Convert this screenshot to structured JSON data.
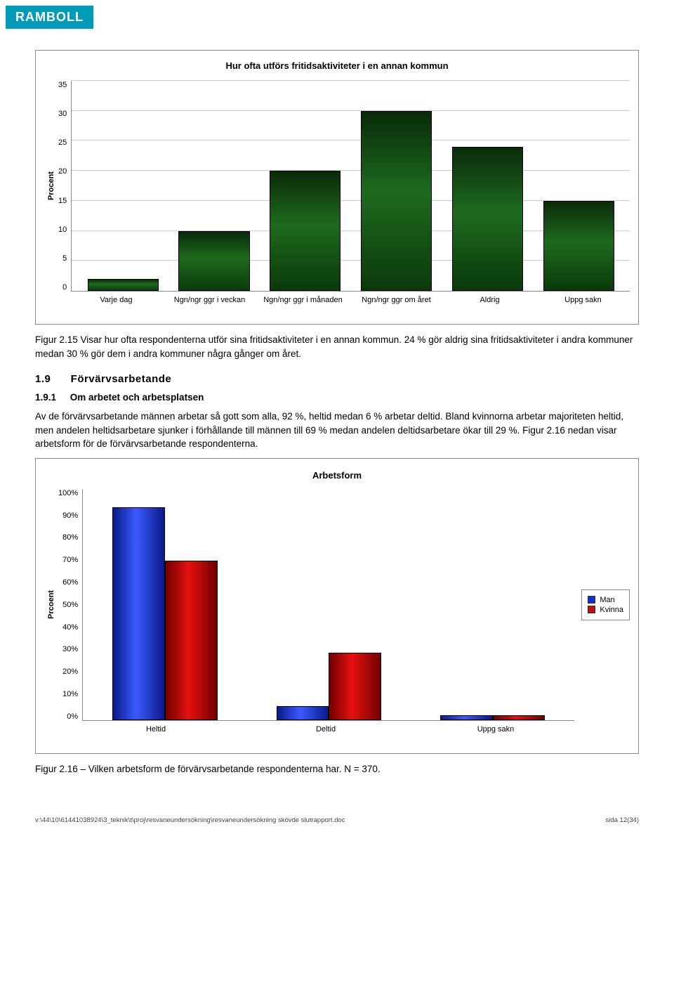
{
  "logo": "RAMBOLL",
  "chart1": {
    "type": "bar",
    "title": "Hur ofta utförs fritidsaktiviteter i en annan kommun",
    "ylabel": "Procent",
    "ymax": 35,
    "ytick_step": 5,
    "yticks": [
      "35",
      "30",
      "25",
      "20",
      "15",
      "10",
      "5",
      "0"
    ],
    "categories": [
      "Varje dag",
      "Ngn/ngr ggr i veckan",
      "Ngn/ngr ggr i månaden",
      "Ngn/ngr ggr om året",
      "Aldrig",
      "Uppg sakn"
    ],
    "values": [
      2,
      10,
      20,
      30,
      24,
      15
    ],
    "bar_gradient_top": "#0a2a0a",
    "bar_gradient_mid": "#1e6a1e",
    "background": "#ffffff",
    "grid_color": "#cccccc"
  },
  "caption1": "Figur 2.15 Visar hur ofta respondenterna utför sina fritidsaktiviteter i en annan kommun. 24 % gör aldrig sina fritidsaktiviteter i andra kommuner medan 30 % gör dem i andra kommuner några gånger om året.",
  "section": {
    "num": "1.9",
    "title": "Förvärvsarbetande"
  },
  "subsection": {
    "num": "1.9.1",
    "title": "Om arbetet och arbetsplatsen"
  },
  "para1": "Av de förvärvsarbetande männen arbetar så gott som alla, 92 %, heltid medan 6 % arbetar deltid. Bland kvinnorna arbetar majoriteten heltid, men andelen heltidsarbetare sjunker i förhållande till männen till 69 % medan andelen deltidsarbetare ökar till 29 %. Figur 2.16 nedan visar arbetsform för de förvärvsarbetande respondenterna.",
  "chart2": {
    "type": "grouped-bar",
    "title": "Arbetsform",
    "ylabel": "Prcoent",
    "ymax": 100,
    "ytick_step": 10,
    "yticks": [
      "100%",
      "90%",
      "80%",
      "70%",
      "60%",
      "50%",
      "40%",
      "30%",
      "20%",
      "10%",
      "0%"
    ],
    "categories": [
      "Heltid",
      "Deltid",
      "Uppg sakn"
    ],
    "series": [
      {
        "name": "Man",
        "color_from": "#0a1a8a",
        "color_mid": "#3a5aff",
        "values": [
          92,
          6,
          2
        ]
      },
      {
        "name": "Kvinna",
        "color_from": "#700000",
        "color_mid": "#e81010",
        "values": [
          69,
          29,
          2
        ]
      }
    ],
    "legend_colors": {
      "Man": "#1030d0",
      "Kvinna": "#c01010"
    },
    "background": "#ffffff",
    "grid_color": "#cccccc"
  },
  "caption2": "Figur 2.16 – Vilken arbetsform de förvärvsarbetande respondenterna har. N = 370.",
  "footer_left": "v:\\44\\10\\61441038924\\3_teknik\\t\\proj\\resvaneundersökning\\resvaneundersökning skövde slutrapport.doc",
  "footer_right": "sida 12(34)"
}
